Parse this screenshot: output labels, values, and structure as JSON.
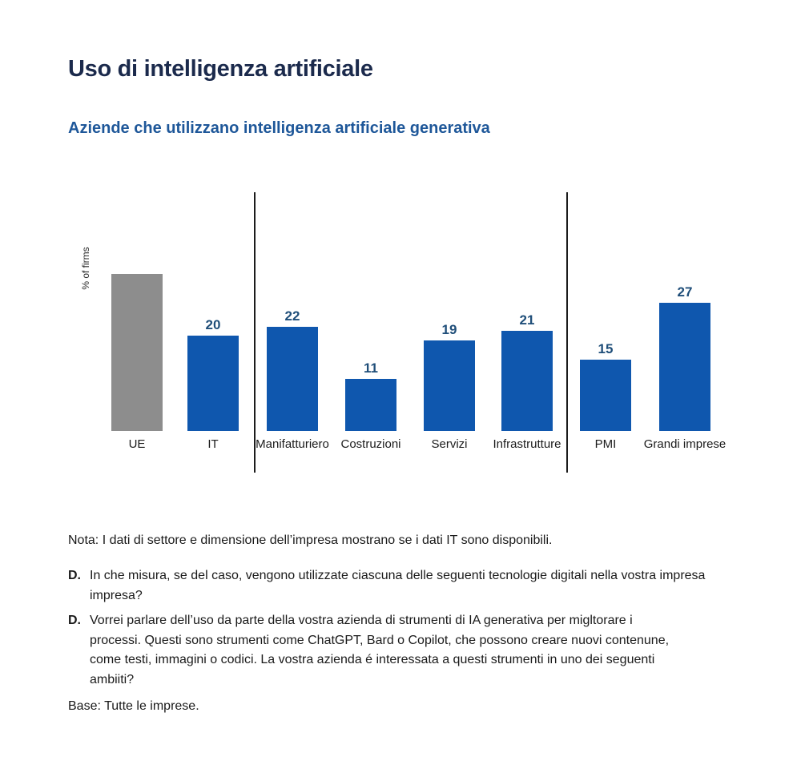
{
  "title": "Uso di intelligenza artificiale",
  "subtitle": "Aziende che utilizzano intelligenza artificiale generativa",
  "chart_data": {
    "type": "bar",
    "title": "Aziende che utilizzano intelligenza artificiale generativa",
    "ylabel": "% of firms",
    "categories": [
      "UE",
      "IT",
      "Manifatturiero",
      "Costruzioni",
      "Servizi",
      "Infrastrutture",
      "PMI",
      "Grandi imprese"
    ],
    "values": [
      33,
      20,
      22,
      11,
      19,
      21,
      15,
      27
    ],
    "value_labels": [
      "",
      "20",
      "22",
      "11",
      "19",
      "21",
      "15",
      "27"
    ],
    "bar_colors": [
      "gray",
      "blue",
      "blue",
      "blue",
      "blue",
      "blue",
      "blue",
      "blue"
    ],
    "unlabeled_bars": [
      "UE"
    ],
    "groups": [
      [
        "UE",
        "IT"
      ],
      [
        "Manifatturiero",
        "Costruzioni",
        "Servizi",
        "Infrastrutture"
      ],
      [
        "PMI",
        "Grandi imprese"
      ]
    ],
    "axis_visible": false,
    "grid": false,
    "legend": false
  },
  "colors": {
    "bar_blue": "#0f57ae",
    "bar_gray": "#8d8d8d",
    "value_label": "#1f4e79",
    "title": "#1b2a4c",
    "subtitle": "#1e5799",
    "divider": "#1c1c1c"
  },
  "notes": {
    "nota": "Nota: I dati di settore e dimensione dell’impresa mostrano se i dati IT sono disponibili.",
    "q1_label": "D.",
    "q1_text": "In che misura, se del caso, vengono utilizzate ciascuna delle seguenti tecnologie digitali nella vostra impresa\nimpresa?",
    "q2_label": "D.",
    "q2_text": "Vorrei parlare dell’uso da parte della vostra azienda di strumenti di IA generativa per migltorare i\nprocessi. Questi sono strumenti come ChatGPT, Bard o Copilot, che possono creare nuovi contenune,\ncome testi, immagini o codici. La vostra azienda é interessata a questi strumenti in uno dei seguenti\nambiiti?",
    "base": "Base: Tutte le imprese."
  }
}
